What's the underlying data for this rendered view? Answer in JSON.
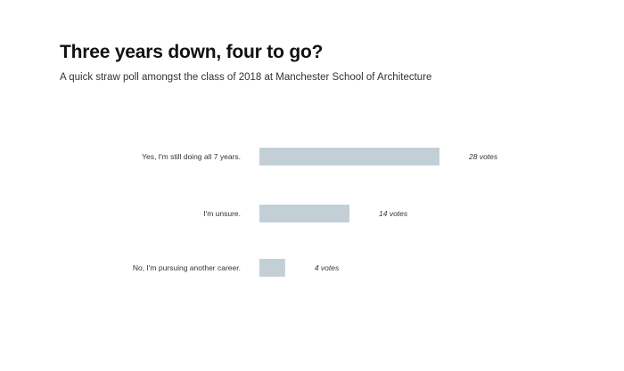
{
  "chart_data": {
    "type": "bar",
    "orientation": "horizontal",
    "title": "Three years down, four to go?",
    "subtitle": "A quick straw poll amongst the class of 2018 at Manchester School of Architecture",
    "categories": [
      "Yes, I'm still doing all 7 years.",
      "I'm unsure.",
      "No, I'm pursuing another career."
    ],
    "values": [
      28,
      14,
      4
    ],
    "value_labels": [
      "28 votes",
      "14 votes",
      "4 votes"
    ],
    "xlim": [
      0,
      28
    ],
    "grid": false,
    "legend": "none",
    "bar_color": "#c3cfd7"
  }
}
